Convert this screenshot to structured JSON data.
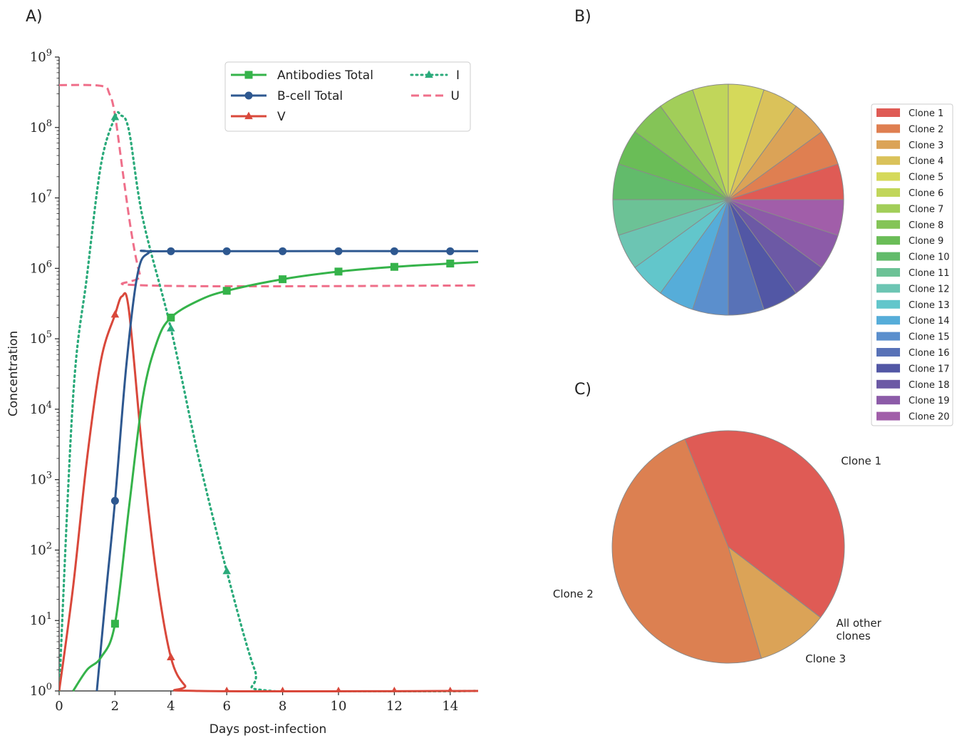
{
  "panels": {
    "a": "A)",
    "b": "B)",
    "c": "C)"
  },
  "chart_data": [
    {
      "type": "line",
      "xlabel": "Days post-infection",
      "ylabel": "Concentration",
      "xlim": [
        0,
        15
      ],
      "ylim_log10": [
        0,
        9
      ],
      "yscale": "log",
      "x_ticks": [
        0,
        2,
        4,
        6,
        8,
        10,
        12,
        14
      ],
      "y_tick_exponents": [
        0,
        1,
        2,
        3,
        4,
        5,
        6,
        7,
        8,
        9
      ],
      "y_tick_base": "10",
      "legend_position": "top-right",
      "series": [
        {
          "name": "Antibodies Total",
          "color": "#35b34a",
          "style": "solid",
          "marker": "square",
          "points": [
            [
              0.5,
              1
            ],
            [
              1,
              2
            ],
            [
              1.5,
              3
            ],
            [
              2,
              9
            ],
            [
              2.5,
              400
            ],
            [
              3,
              15000
            ],
            [
              3.5,
              90000
            ],
            [
              4,
              200000
            ],
            [
              5,
              350000
            ],
            [
              6,
              480000
            ],
            [
              8,
              700000
            ],
            [
              10,
              900000
            ],
            [
              12,
              1050000
            ],
            [
              14,
              1170000
            ],
            [
              15,
              1230000
            ]
          ],
          "marker_points": [
            [
              2,
              9
            ],
            [
              4,
              200000
            ],
            [
              6,
              480000
            ],
            [
              8,
              700000
            ],
            [
              10,
              900000
            ],
            [
              12,
              1050000
            ],
            [
              14,
              1170000
            ]
          ]
        },
        {
          "name": "B-cell Total",
          "color": "#2e5890",
          "style": "solid",
          "marker": "circle",
          "points": [
            [
              1.35,
              1
            ],
            [
              1.7,
              30
            ],
            [
              2,
              500
            ],
            [
              2.4,
              40000
            ],
            [
              2.8,
              800000
            ],
            [
              3.2,
              1650000
            ],
            [
              4,
              1750000
            ],
            [
              15,
              1750000
            ]
          ],
          "marker_points": [
            [
              2,
              500
            ],
            [
              4,
              1750000
            ],
            [
              6,
              1750000
            ],
            [
              8,
              1750000
            ],
            [
              10,
              1750000
            ],
            [
              12,
              1750000
            ],
            [
              14,
              1750000
            ]
          ]
        },
        {
          "name": "V",
          "color": "#d9483b",
          "style": "solid",
          "marker": "triangle",
          "points": [
            [
              0,
              1
            ],
            [
              0.5,
              30
            ],
            [
              1,
              2000
            ],
            [
              1.5,
              50000
            ],
            [
              2,
              220000
            ],
            [
              2.25,
              400000
            ],
            [
              2.5,
              250000
            ],
            [
              3,
              2000
            ],
            [
              3.5,
              40
            ],
            [
              4,
              3
            ],
            [
              4.5,
              1.2
            ],
            [
              5,
              1
            ],
            [
              15,
              1
            ]
          ],
          "marker_points": [
            [
              2,
              220000
            ],
            [
              4,
              3
            ],
            [
              6,
              1
            ],
            [
              8,
              1
            ],
            [
              10,
              1
            ],
            [
              12,
              1
            ],
            [
              14,
              1
            ]
          ]
        },
        {
          "name": "I",
          "color": "#2aaa7a",
          "style": "dotted",
          "marker": "triangle",
          "points": [
            [
              0,
              1
            ],
            [
              0.5,
              15000
            ],
            [
              1,
              800000
            ],
            [
              1.5,
              30000000
            ],
            [
              2,
              140000000
            ],
            [
              2.2,
              150000000
            ],
            [
              2.5,
              90000000
            ],
            [
              3,
              5000000
            ],
            [
              4,
              140000
            ],
            [
              5,
              2000
            ],
            [
              6,
              50
            ],
            [
              7,
              2
            ],
            [
              7.6,
              1
            ],
            [
              15,
              1
            ]
          ],
          "marker_points": [
            [
              2,
              140000000
            ],
            [
              4,
              140000
            ],
            [
              6,
              50
            ]
          ]
        },
        {
          "name": "U",
          "color": "#ef6f8a",
          "style": "dashed",
          "marker": "none",
          "points": [
            [
              0,
              400000000
            ],
            [
              1.5,
              390000000
            ],
            [
              1.8,
              300000000
            ],
            [
              2,
              150000000
            ],
            [
              2.3,
              20000000
            ],
            [
              2.6,
              3000000
            ],
            [
              2.9,
              800000
            ],
            [
              3.2,
              570000
            ],
            [
              15,
              570000
            ]
          ],
          "marker_points": []
        }
      ]
    },
    {
      "type": "pie",
      "legend_title": "",
      "labels": [
        "Clone 1",
        "Clone 2",
        "Clone 3",
        "Clone 4",
        "Clone 5",
        "Clone 6",
        "Clone 7",
        "Clone 8",
        "Clone 9",
        "Clone 10",
        "Clone 11",
        "Clone 12",
        "Clone 13",
        "Clone 14",
        "Clone 15",
        "Clone 16",
        "Clone 17",
        "Clone 18",
        "Clone 19",
        "Clone 20"
      ],
      "values": [
        5,
        5,
        5,
        5,
        5,
        5,
        5,
        5,
        5,
        5,
        5,
        5,
        5,
        5,
        5,
        5,
        5,
        5,
        5,
        5
      ],
      "colors": [
        "#df5b55",
        "#df7f51",
        "#dba357",
        "#dac25a",
        "#d5d95a",
        "#c1d65a",
        "#a2ce59",
        "#84c457",
        "#6abd57",
        "#62bb6b",
        "#6cc296",
        "#6cc5b3",
        "#62c6cb",
        "#56add9",
        "#5b8fcd",
        "#5872b7",
        "#5257a5",
        "#6c59a5",
        "#8c5ba8",
        "#a15ea9"
      ],
      "legend_position": "right"
    },
    {
      "type": "pie",
      "labels": [
        "Clone 1",
        "Clone 2",
        "Clone 3",
        "All other clones"
      ],
      "label_lines": [
        [
          "Clone 1"
        ],
        [
          "Clone 2"
        ],
        [
          "Clone 3"
        ],
        [
          "All other",
          "clones"
        ]
      ],
      "values": [
        41.5,
        48.5,
        10,
        0.02
      ],
      "colors": [
        "#df5b55",
        "#dc8051",
        "#dba357",
        "#dac25a"
      ]
    }
  ]
}
